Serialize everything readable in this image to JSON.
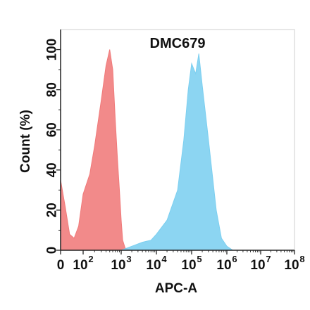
{
  "chart_data": {
    "type": "area",
    "title": "DMC679",
    "xlabel": "APC-A",
    "ylabel": "Count  (%)",
    "x_scale": "biexponential",
    "ylim": [
      0,
      110
    ],
    "grid": false,
    "legend": "none",
    "x_ticks": [
      {
        "base": "0",
        "exp": ""
      },
      {
        "base": "10",
        "exp": "2"
      },
      {
        "base": "10",
        "exp": "3"
      },
      {
        "base": "10",
        "exp": "4"
      },
      {
        "base": "10",
        "exp": "5"
      },
      {
        "base": "10",
        "exp": "6"
      },
      {
        "base": "10",
        "exp": "7"
      },
      {
        "base": "10",
        "exp": "8"
      }
    ],
    "y_ticks": [
      "0",
      "20",
      "40",
      "60",
      "80",
      "100"
    ],
    "series": [
      {
        "color": "#f07a7a",
        "x": [
          0,
          20,
          40,
          60,
          80,
          100,
          150,
          200,
          300,
          400,
          500,
          600,
          700,
          800,
          900,
          1000,
          1100,
          1300,
          1600,
          2000
        ],
        "values": [
          35,
          22,
          8,
          6,
          12,
          28,
          38,
          52,
          75,
          92,
          100,
          90,
          65,
          45,
          30,
          15,
          5,
          1,
          0.5,
          0
        ]
      },
      {
        "color": "#7ccff0",
        "x": [
          1000,
          2000,
          4000,
          7000,
          10000,
          20000,
          40000,
          60000,
          80000,
          100000,
          130000,
          160000,
          200000,
          300000,
          500000,
          700000,
          1000000,
          1500000
        ],
        "values": [
          0,
          2,
          4,
          5,
          8,
          15,
          30,
          55,
          80,
          93,
          88,
          98,
          82,
          55,
          20,
          6,
          2,
          0
        ]
      }
    ]
  }
}
